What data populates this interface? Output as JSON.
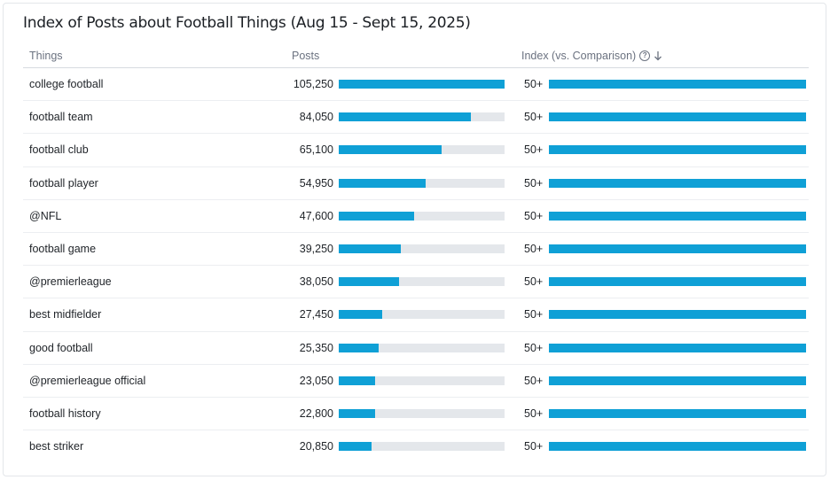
{
  "chart_data": {
    "type": "table",
    "title": "Index of Posts about Football Things (Aug 15 - Sept 15, 2025)",
    "columns": {
      "things": "Things",
      "posts": "Posts",
      "index": "Index (vs. Comparison)"
    },
    "posts_max": 105250,
    "index_fill_fraction": 1.0,
    "bar_color": "#0fa0d6",
    "track_color": "#e4e7eb",
    "rows": [
      {
        "thing": "college football",
        "posts": 105250,
        "posts_label": "105,250",
        "index_label": "50+"
      },
      {
        "thing": "football team",
        "posts": 84050,
        "posts_label": "84,050",
        "index_label": "50+"
      },
      {
        "thing": "football club",
        "posts": 65100,
        "posts_label": "65,100",
        "index_label": "50+"
      },
      {
        "thing": "football player",
        "posts": 54950,
        "posts_label": "54,950",
        "index_label": "50+"
      },
      {
        "thing": "@NFL",
        "posts": 47600,
        "posts_label": "47,600",
        "index_label": "50+"
      },
      {
        "thing": "football game",
        "posts": 39250,
        "posts_label": "39,250",
        "index_label": "50+"
      },
      {
        "thing": "@premierleague",
        "posts": 38050,
        "posts_label": "38,050",
        "index_label": "50+"
      },
      {
        "thing": "best midfielder",
        "posts": 27450,
        "posts_label": "27,450",
        "index_label": "50+"
      },
      {
        "thing": "good football",
        "posts": 25350,
        "posts_label": "25,350",
        "index_label": "50+"
      },
      {
        "thing": "@premierleague official",
        "posts": 23050,
        "posts_label": "23,050",
        "index_label": "50+"
      },
      {
        "thing": "football history",
        "posts": 22800,
        "posts_label": "22,800",
        "index_label": "50+"
      },
      {
        "thing": "best striker",
        "posts": 20850,
        "posts_label": "20,850",
        "index_label": "50+"
      }
    ]
  },
  "icons": {
    "help": "help-circle-icon",
    "sort": "sort-descending-arrow-icon"
  }
}
